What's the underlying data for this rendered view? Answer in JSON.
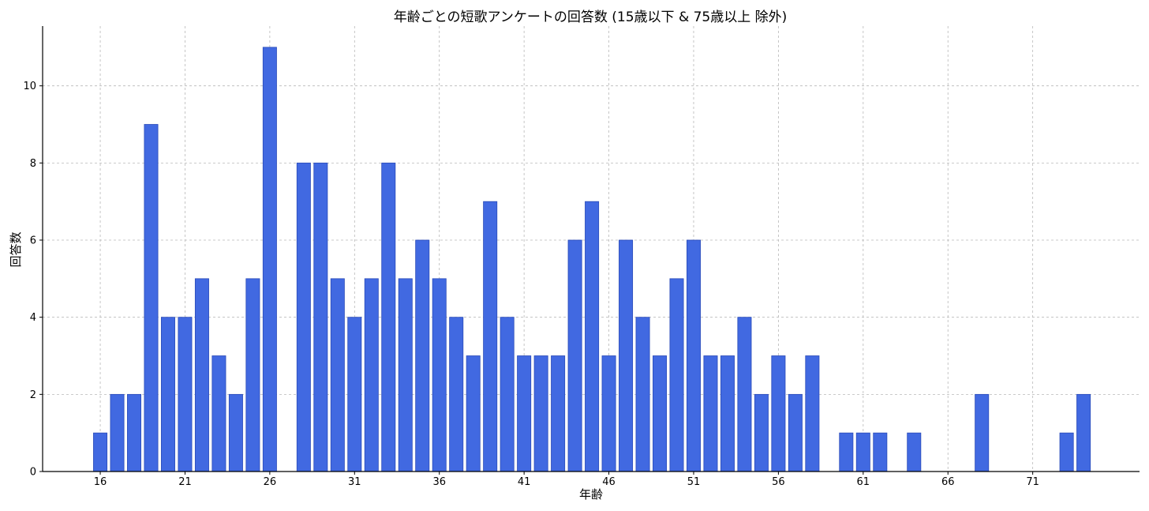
{
  "chart_data": {
    "type": "bar",
    "title": "年齢ごとの短歌アンケートの回答数 (15歳以下 & 75歳以上 除外)",
    "xlabel": "年齢",
    "ylabel": "回答数",
    "x": [
      16,
      17,
      18,
      19,
      20,
      21,
      22,
      23,
      24,
      25,
      26,
      28,
      29,
      30,
      31,
      32,
      33,
      34,
      35,
      36,
      37,
      38,
      39,
      40,
      41,
      42,
      43,
      44,
      45,
      46,
      47,
      48,
      49,
      50,
      51,
      52,
      53,
      54,
      55,
      56,
      57,
      58,
      60,
      61,
      62,
      64,
      68,
      73,
      74
    ],
    "values": [
      1,
      2,
      2,
      9,
      4,
      4,
      5,
      3,
      2,
      5,
      11,
      8,
      8,
      5,
      4,
      5,
      8,
      5,
      6,
      5,
      4,
      3,
      7,
      4,
      3,
      3,
      3,
      6,
      7,
      3,
      6,
      4,
      3,
      5,
      6,
      3,
      3,
      4,
      2,
      3,
      2,
      3,
      1,
      1,
      1,
      1,
      2,
      1,
      2
    ],
    "xticks": [
      16,
      21,
      26,
      31,
      36,
      41,
      46,
      51,
      56,
      61,
      66,
      71
    ],
    "yticks": [
      0,
      2,
      4,
      6,
      8,
      10
    ],
    "xlim": [
      12.6,
      77.3
    ],
    "ylim": [
      0,
      11.55
    ],
    "grid": true,
    "bar_color": "#4169E1",
    "bar_edge_color": "#2a4bb8"
  }
}
